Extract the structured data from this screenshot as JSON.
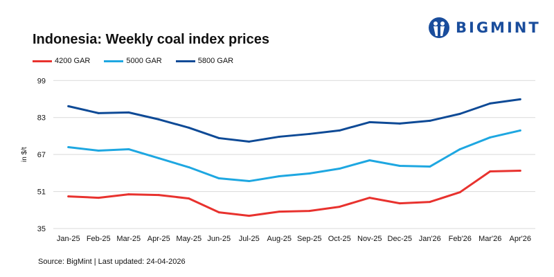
{
  "title": "Indonesia: Weekly coal index prices",
  "logo": {
    "text": "BIGMINT",
    "color": "#1a4d9c"
  },
  "source": "Source: BigMint | Last updated: 24-04-2026",
  "chart_data": {
    "type": "line",
    "title": "Indonesia: Weekly coal index prices",
    "xlabel": "",
    "ylabel": "in $/t",
    "ylim": [
      35,
      99
    ],
    "yticks": [
      35,
      51,
      67,
      83,
      99
    ],
    "grid": true,
    "legend_position": "top-left",
    "categories": [
      "Jan-25",
      "Feb-25",
      "Mar-25",
      "Apr-25",
      "May-25",
      "Jun-25",
      "Jul-25",
      "Aug-25",
      "Sep-25",
      "Oct-25",
      "Nov-25",
      "Dec-25",
      "Jan'26",
      "Feb'26",
      "Mar'26",
      "Apr'26"
    ],
    "series": [
      {
        "name": "4200 GAR",
        "color": "#e8322e",
        "values": [
          48.9,
          48.3,
          49.8,
          49.5,
          48.0,
          42.0,
          40.5,
          42.3,
          42.6,
          44.4,
          48.3,
          45.9,
          46.5,
          50.7,
          59.7,
          60.0
        ]
      },
      {
        "name": "5000 GAR",
        "color": "#1ea7e1",
        "values": [
          70.2,
          68.7,
          69.3,
          65.4,
          61.5,
          56.7,
          55.5,
          57.6,
          58.8,
          60.9,
          64.5,
          62.1,
          61.8,
          69.3,
          74.4,
          77.4
        ]
      },
      {
        "name": "5800 GAR",
        "color": "#0e4a96",
        "values": [
          87.9,
          84.9,
          85.2,
          82.2,
          78.6,
          74.1,
          72.6,
          74.7,
          75.9,
          77.4,
          81.0,
          80.4,
          81.6,
          84.6,
          89.1,
          90.9
        ]
      }
    ]
  }
}
